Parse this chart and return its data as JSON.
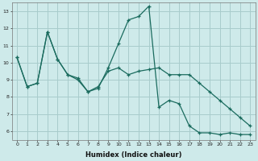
{
  "xlabel": "Humidex (Indice chaleur)",
  "background_color": "#ceeaea",
  "grid_color": "#a8cccc",
  "line_color": "#1a6b5e",
  "xlim": [
    -0.5,
    23.5
  ],
  "ylim": [
    5.5,
    13.5
  ],
  "yticks": [
    6,
    7,
    8,
    9,
    10,
    11,
    12,
    13
  ],
  "xticks": [
    0,
    1,
    2,
    3,
    4,
    5,
    6,
    7,
    8,
    9,
    10,
    11,
    12,
    13,
    14,
    15,
    16,
    17,
    18,
    19,
    20,
    21,
    22,
    23
  ],
  "series1_x": [
    0,
    1,
    2,
    3,
    4,
    5,
    6,
    7,
    8,
    9,
    10,
    11,
    12,
    13,
    14,
    15,
    16,
    17,
    18,
    19,
    20,
    21,
    22,
    23
  ],
  "series1_y": [
    10.3,
    8.6,
    8.8,
    11.8,
    10.2,
    9.3,
    9.0,
    8.3,
    8.5,
    9.7,
    11.1,
    12.5,
    12.7,
    13.3,
    7.4,
    7.8,
    7.6,
    6.3,
    5.9,
    5.9,
    5.8,
    5.9,
    5.8,
    5.8
  ],
  "series2_x": [
    0,
    1,
    2,
    3,
    4,
    5,
    6,
    7,
    8,
    9,
    10,
    11,
    12,
    13,
    14,
    15,
    16,
    17,
    18,
    19,
    20,
    21,
    22,
    23
  ],
  "series2_y": [
    10.3,
    8.6,
    8.8,
    11.8,
    10.2,
    9.3,
    9.1,
    8.3,
    8.6,
    9.5,
    9.7,
    9.3,
    9.5,
    9.6,
    9.7,
    9.3,
    9.3,
    9.3,
    8.8,
    8.3,
    7.8,
    7.3,
    6.8,
    6.3
  ]
}
